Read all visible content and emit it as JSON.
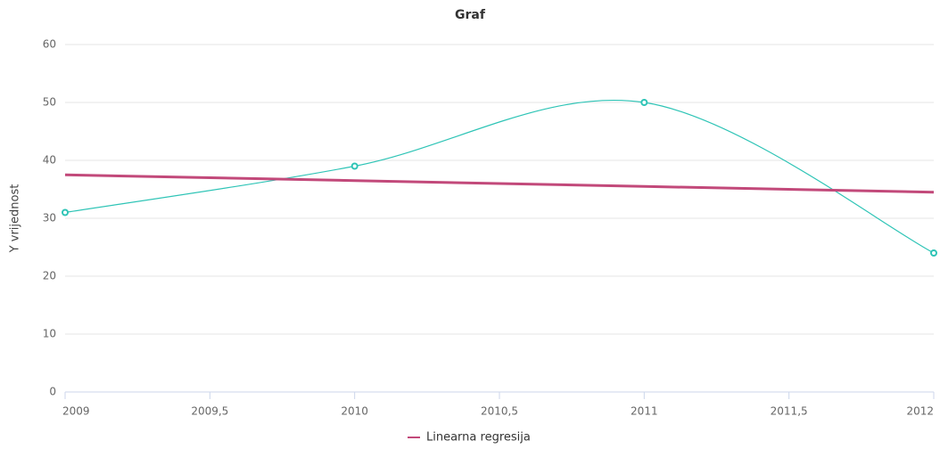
{
  "chart_data": {
    "type": "line",
    "title": "Graf",
    "y_label": "Y vrijednost",
    "x": [
      2009,
      2010,
      2011,
      2012
    ],
    "series": [
      {
        "color": "#2ec4b6",
        "values": [
          31,
          39,
          50,
          24
        ],
        "smooth": true,
        "markers": true
      },
      {
        "name": "Linearna regresija",
        "color": "#c2497a",
        "values": [
          37.5,
          36.5,
          35.5,
          34.5
        ],
        "smooth": false,
        "markers": false
      }
    ],
    "xlim": [
      2009,
      2012
    ],
    "xticks": [
      2009,
      {
        "value": 2009.5,
        "label": "2009,5"
      },
      2010,
      {
        "value": 2010.5,
        "label": "2010,5"
      },
      2011,
      {
        "value": 2011.5,
        "label": "2011,5"
      },
      2012
    ],
    "ylim": [
      0,
      60
    ],
    "yticks": [
      0,
      10,
      20,
      30,
      40,
      50,
      60
    ],
    "grid": true,
    "legend": "bottom"
  }
}
